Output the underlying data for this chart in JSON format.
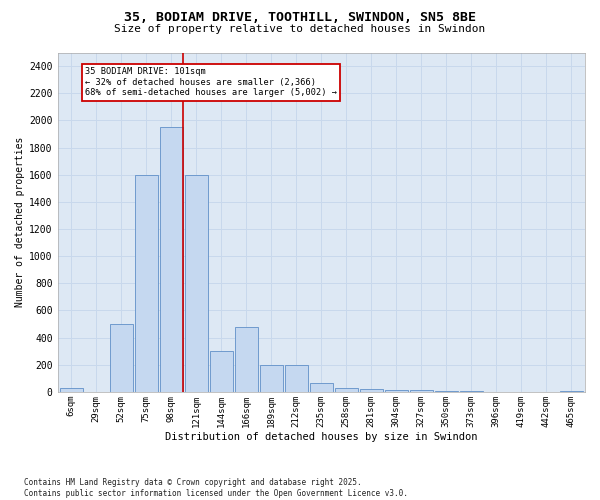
{
  "title_line1": "35, BODIAM DRIVE, TOOTHILL, SWINDON, SN5 8BE",
  "title_line2": "Size of property relative to detached houses in Swindon",
  "xlabel": "Distribution of detached houses by size in Swindon",
  "ylabel": "Number of detached properties",
  "footnote": "Contains HM Land Registry data © Crown copyright and database right 2025.\nContains public sector information licensed under the Open Government Licence v3.0.",
  "bar_labels": [
    "6sqm",
    "29sqm",
    "52sqm",
    "75sqm",
    "98sqm",
    "121sqm",
    "144sqm",
    "166sqm",
    "189sqm",
    "212sqm",
    "235sqm",
    "258sqm",
    "281sqm",
    "304sqm",
    "327sqm",
    "350sqm",
    "373sqm",
    "396sqm",
    "419sqm",
    "442sqm",
    "465sqm"
  ],
  "bar_values": [
    30,
    0,
    500,
    1600,
    1950,
    1600,
    300,
    480,
    200,
    195,
    65,
    30,
    20,
    15,
    12,
    10,
    5,
    0,
    0,
    0,
    10
  ],
  "bar_color": "#c5d8f0",
  "bar_edge_color": "#6090c8",
  "grid_color": "#c8d8ec",
  "background_color": "#dde8f4",
  "annotation_box_edge_color": "#cc0000",
  "property_line_color": "#cc0000",
  "property_bin_index": 4,
  "annotation_line1": "35 BODIAM DRIVE: 101sqm",
  "annotation_line2": "← 32% of detached houses are smaller (2,366)",
  "annotation_line3": "68% of semi-detached houses are larger (5,002) →",
  "ylim": [
    0,
    2500
  ],
  "yticks": [
    0,
    200,
    400,
    600,
    800,
    1000,
    1200,
    1400,
    1600,
    1800,
    2000,
    2200,
    2400
  ],
  "figsize": [
    6.0,
    5.0
  ],
  "dpi": 100
}
